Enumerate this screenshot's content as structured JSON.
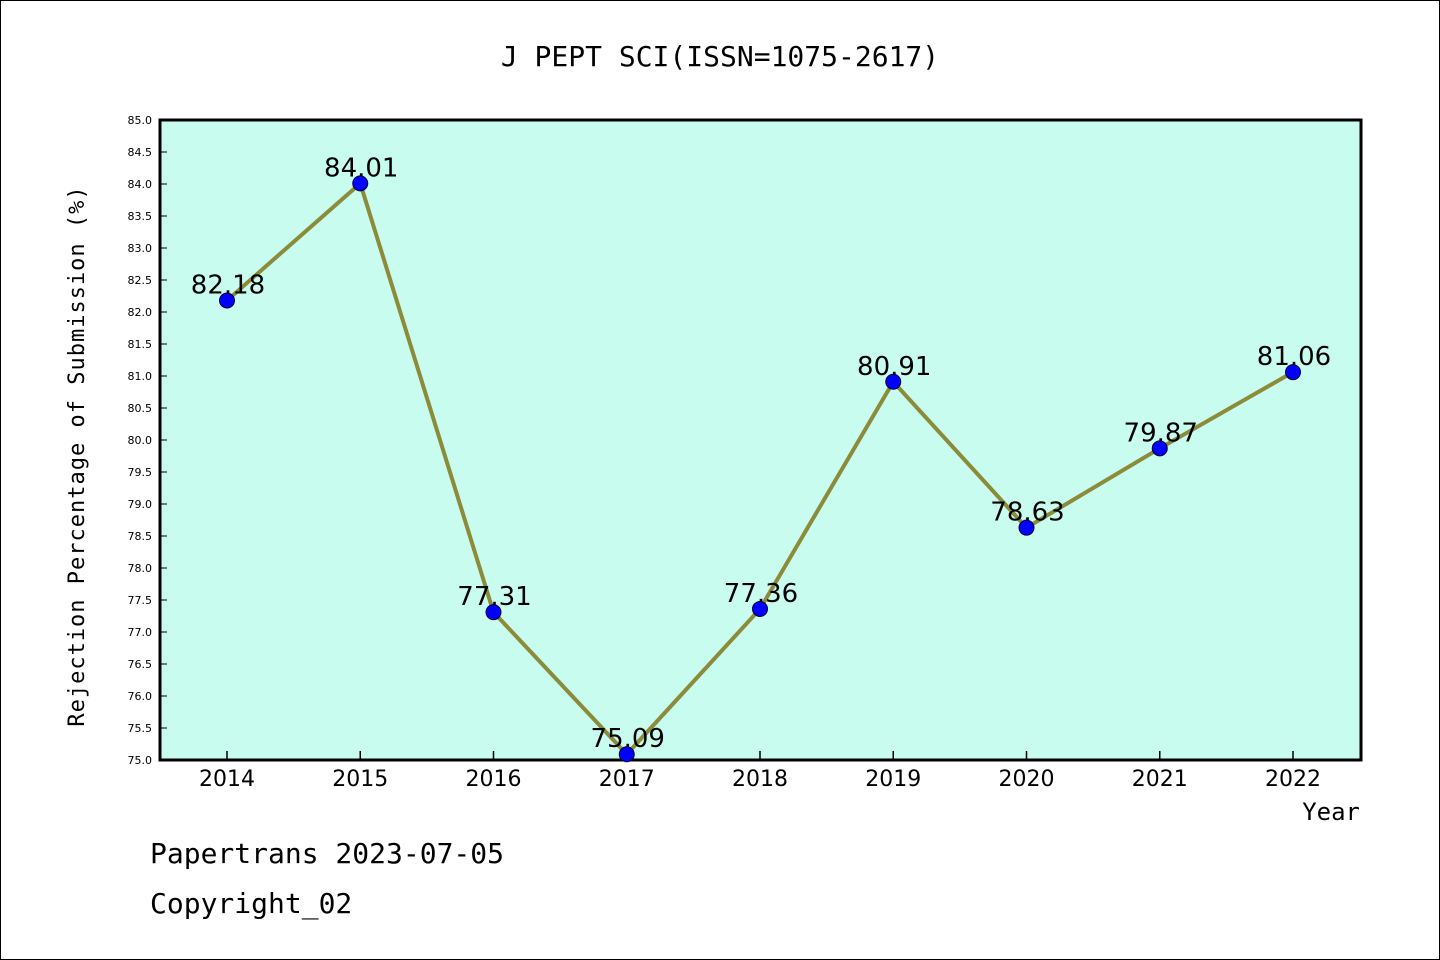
{
  "chart_data": {
    "type": "line",
    "title": "J PEPT SCI(ISSN=1075-2617)",
    "xlabel": "Year",
    "ylabel": "Rejection Percentage of Submission (%)",
    "x": [
      "2014",
      "2015",
      "2016",
      "2017",
      "2018",
      "2019",
      "2020",
      "2021",
      "2022"
    ],
    "series": [
      {
        "values": [
          82.18,
          84.01,
          77.31,
          75.09,
          77.36,
          80.91,
          78.63,
          79.87,
          81.06
        ],
        "labels": [
          "82.18",
          "84.01",
          "77.31",
          "75.09",
          "77.36",
          "80.91",
          "78.63",
          "79.87",
          "81.06"
        ]
      }
    ],
    "ylim": [
      75.0,
      85.0
    ],
    "ytick_step": 0.5,
    "grid": false,
    "colors": {
      "plot_background": "#c8fcee",
      "line": "#8b8b3a",
      "marker": "#0000ff"
    }
  },
  "footer": {
    "line1": "Papertrans 2023-07-05",
    "line2": "Copyright_02"
  }
}
